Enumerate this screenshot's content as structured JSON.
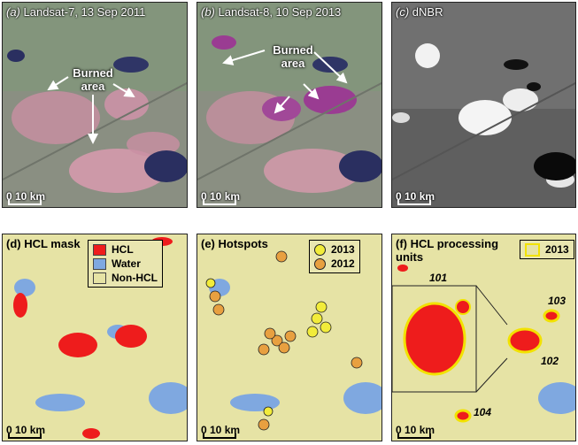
{
  "panels": {
    "a": {
      "letter": "(a)",
      "title": " Landsat-7, 13 Sep 2011",
      "annotation": "Burned area",
      "scale": "0  10 km"
    },
    "b": {
      "letter": "(b)",
      "title": " Landsat-8, 10 Sep 2013",
      "annotation": "Burned area",
      "scale": "0  10 km"
    },
    "c": {
      "letter": "(c)",
      "title": " dNBR",
      "scale": "0  10 km"
    },
    "d": {
      "title": "(d) HCL mask",
      "scale": "0  10 km",
      "legend": [
        {
          "label": "HCL",
          "color": "#ee1c1c"
        },
        {
          "label": "Water",
          "color": "#7fa8e0"
        },
        {
          "label": "Non-HCL",
          "color": "#e6e3a5"
        }
      ]
    },
    "e": {
      "title": "(e) Hotspots",
      "scale": "0  10 km",
      "legend": [
        {
          "label": "2013",
          "color": "#f2ec3a"
        },
        {
          "label": "2012",
          "color": "#e8a040"
        }
      ]
    },
    "f": {
      "title": "(f) HCL processing",
      "title2": "units",
      "scale": "0  10 km",
      "legend": [
        {
          "label": "2013",
          "color": "#f2e200"
        }
      ],
      "units": [
        "101",
        "103",
        "102",
        "104"
      ]
    }
  },
  "colors": {
    "hcl": "#ee1c1c",
    "water": "#7fa8e0",
    "nonhcl": "#e6e3a5",
    "hotspot2013": "#f2ec3a",
    "hotspot2012": "#e8a040"
  }
}
